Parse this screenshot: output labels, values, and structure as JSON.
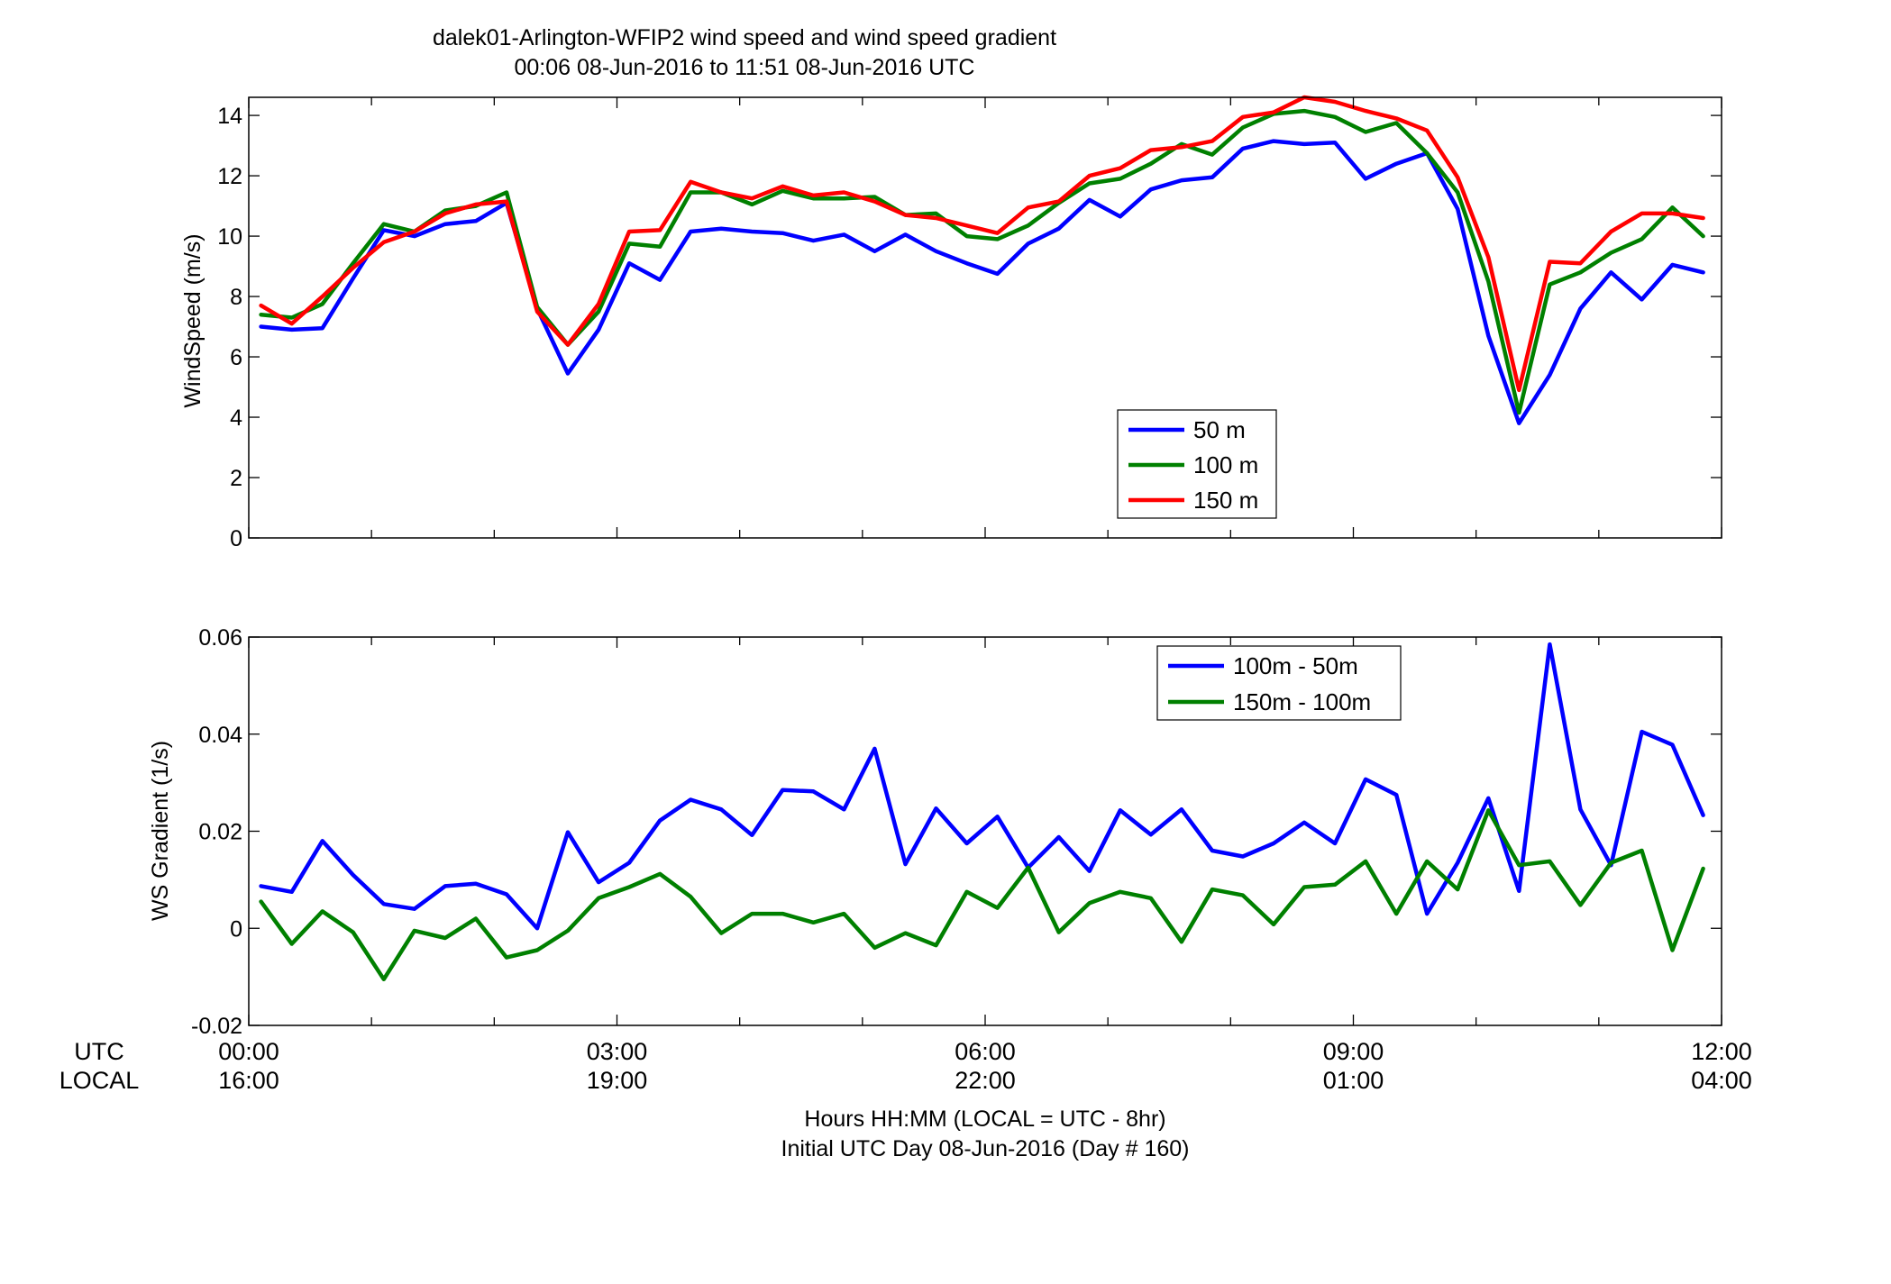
{
  "figure": {
    "title_line1": "dalek01-Arlington-WFIP2  wind speed and wind speed gradient",
    "title_line2": "00:06 08-Jun-2016 to 11:51 08-Jun-2016  UTC",
    "row_label_utc": "UTC",
    "row_label_local": "LOCAL",
    "xlabel_line1": "Hours HH:MM  (LOCAL = UTC - 8hr)",
    "xlabel_line2": "Initial UTC Day 08-Jun-2016 (Day # 160)",
    "utc_ticks": [
      "00:00",
      "03:00",
      "06:00",
      "09:00",
      "12:00"
    ],
    "local_ticks": [
      "16:00",
      "19:00",
      "22:00",
      "01:00",
      "04:00"
    ]
  },
  "chart_data": [
    {
      "type": "line",
      "ylabel": "WindSpeed (m/s)",
      "xlabel": "",
      "x_units": "hours UTC",
      "xlim": [
        0,
        12
      ],
      "ylim": [
        0,
        14.6
      ],
      "yticks": [
        0,
        2,
        4,
        6,
        8,
        10,
        12,
        14
      ],
      "grid": false,
      "legend_position": "lower-right",
      "x": [
        0.1,
        0.35,
        0.6,
        0.85,
        1.1,
        1.35,
        1.6,
        1.85,
        2.1,
        2.35,
        2.6,
        2.85,
        3.1,
        3.35,
        3.6,
        3.85,
        4.1,
        4.35,
        4.6,
        4.85,
        5.1,
        5.35,
        5.6,
        5.85,
        6.1,
        6.35,
        6.6,
        6.85,
        7.1,
        7.35,
        7.6,
        7.85,
        8.1,
        8.35,
        8.6,
        8.85,
        9.1,
        9.35,
        9.6,
        9.85,
        10.1,
        10.35,
        10.6,
        10.85,
        11.1,
        11.35,
        11.6,
        11.85
      ],
      "series": [
        {
          "name": "50 m",
          "color": "#0000ff",
          "values": [
            7.0,
            6.9,
            6.95,
            8.6,
            10.2,
            10.0,
            10.4,
            10.5,
            11.1,
            7.6,
            5.45,
            6.9,
            9.1,
            8.55,
            10.15,
            10.25,
            10.15,
            10.1,
            9.85,
            10.05,
            9.5,
            10.05,
            9.5,
            9.1,
            8.75,
            9.75,
            10.25,
            11.2,
            10.65,
            11.55,
            11.85,
            11.95,
            12.9,
            13.15,
            13.05,
            13.1,
            11.9,
            12.4,
            12.75,
            10.9,
            6.7,
            3.8,
            5.4,
            7.6,
            8.8,
            7.9,
            9.05,
            8.8
          ]
        },
        {
          "name": "100 m",
          "color": "#008000",
          "values": [
            7.4,
            7.3,
            7.75,
            9.1,
            10.4,
            10.15,
            10.85,
            11.0,
            11.45,
            7.65,
            6.4,
            7.5,
            9.75,
            9.65,
            11.45,
            11.45,
            11.05,
            11.5,
            11.25,
            11.25,
            11.3,
            10.7,
            10.75,
            10.0,
            9.9,
            10.35,
            11.1,
            11.75,
            11.9,
            12.4,
            13.05,
            12.7,
            13.6,
            14.05,
            14.15,
            13.95,
            13.45,
            13.75,
            12.75,
            11.45,
            8.5,
            4.15,
            8.4,
            8.8,
            9.45,
            9.9,
            10.95,
            10.0
          ]
        },
        {
          "name": "150 m",
          "color": "#ff0000",
          "values": [
            7.7,
            7.1,
            8.0,
            8.95,
            9.8,
            10.15,
            10.75,
            11.05,
            11.15,
            7.5,
            6.4,
            7.75,
            10.15,
            10.2,
            11.8,
            11.45,
            11.25,
            11.65,
            11.35,
            11.45,
            11.15,
            10.7,
            10.6,
            10.35,
            10.1,
            10.95,
            11.15,
            12.0,
            12.25,
            12.85,
            12.95,
            13.15,
            13.95,
            14.1,
            14.6,
            14.45,
            14.15,
            13.9,
            13.5,
            11.95,
            9.3,
            4.9,
            9.15,
            9.1,
            10.15,
            10.75,
            10.75,
            10.6
          ]
        }
      ]
    },
    {
      "type": "line",
      "ylabel": "WS Gradient (1/s)",
      "xlabel": "",
      "x_units": "hours UTC",
      "xlim": [
        0,
        12
      ],
      "ylim": [
        -0.02,
        0.06
      ],
      "yticks": [
        -0.02,
        0,
        0.02,
        0.04,
        0.06
      ],
      "grid": false,
      "legend_position": "top-right",
      "x": [
        0.1,
        0.35,
        0.6,
        0.85,
        1.1,
        1.35,
        1.6,
        1.85,
        2.1,
        2.35,
        2.6,
        2.85,
        3.1,
        3.35,
        3.6,
        3.85,
        4.1,
        4.35,
        4.6,
        4.85,
        5.1,
        5.35,
        5.6,
        5.85,
        6.1,
        6.35,
        6.6,
        6.85,
        7.1,
        7.35,
        7.6,
        7.85,
        8.1,
        8.35,
        8.6,
        8.85,
        9.1,
        9.35,
        9.6,
        9.85,
        10.1,
        10.35,
        10.6,
        10.85,
        11.1,
        11.35,
        11.6,
        11.85
      ],
      "series": [
        {
          "name": "100m - 50m",
          "color": "#0000ff",
          "values": [
            0.0087,
            0.0075,
            0.018,
            0.011,
            0.005,
            0.004,
            0.0087,
            0.0092,
            0.007,
            0.0,
            0.0198,
            0.0095,
            0.0135,
            0.0222,
            0.0265,
            0.0245,
            0.0192,
            0.0285,
            0.0282,
            0.0245,
            0.037,
            0.0132,
            0.0247,
            0.0175,
            0.023,
            0.0125,
            0.0188,
            0.0118,
            0.0243,
            0.0193,
            0.0245,
            0.016,
            0.0148,
            0.0175,
            0.0218,
            0.0175,
            0.0307,
            0.0275,
            0.003,
            0.0135,
            0.0268,
            0.0077,
            0.0585,
            0.0245,
            0.013,
            0.0405,
            0.0378,
            0.0233
          ]
        },
        {
          "name": "150m - 100m",
          "color": "#008000",
          "values": [
            0.0055,
            -0.0032,
            0.0035,
            -0.0008,
            -0.0105,
            -0.0005,
            -0.002,
            0.002,
            -0.006,
            -0.0045,
            -0.0005,
            0.0062,
            0.0085,
            0.0112,
            0.0065,
            -0.001,
            0.003,
            0.003,
            0.0012,
            0.003,
            -0.004,
            -0.001,
            -0.0035,
            0.0075,
            0.0042,
            0.0125,
            -0.0008,
            0.0052,
            0.0075,
            0.0062,
            -0.0028,
            0.008,
            0.0068,
            0.0008,
            0.0085,
            0.009,
            0.0138,
            0.003,
            0.0138,
            0.008,
            0.0243,
            0.013,
            0.0138,
            0.0048,
            0.0135,
            0.016,
            -0.0045,
            0.0123
          ]
        }
      ]
    }
  ]
}
